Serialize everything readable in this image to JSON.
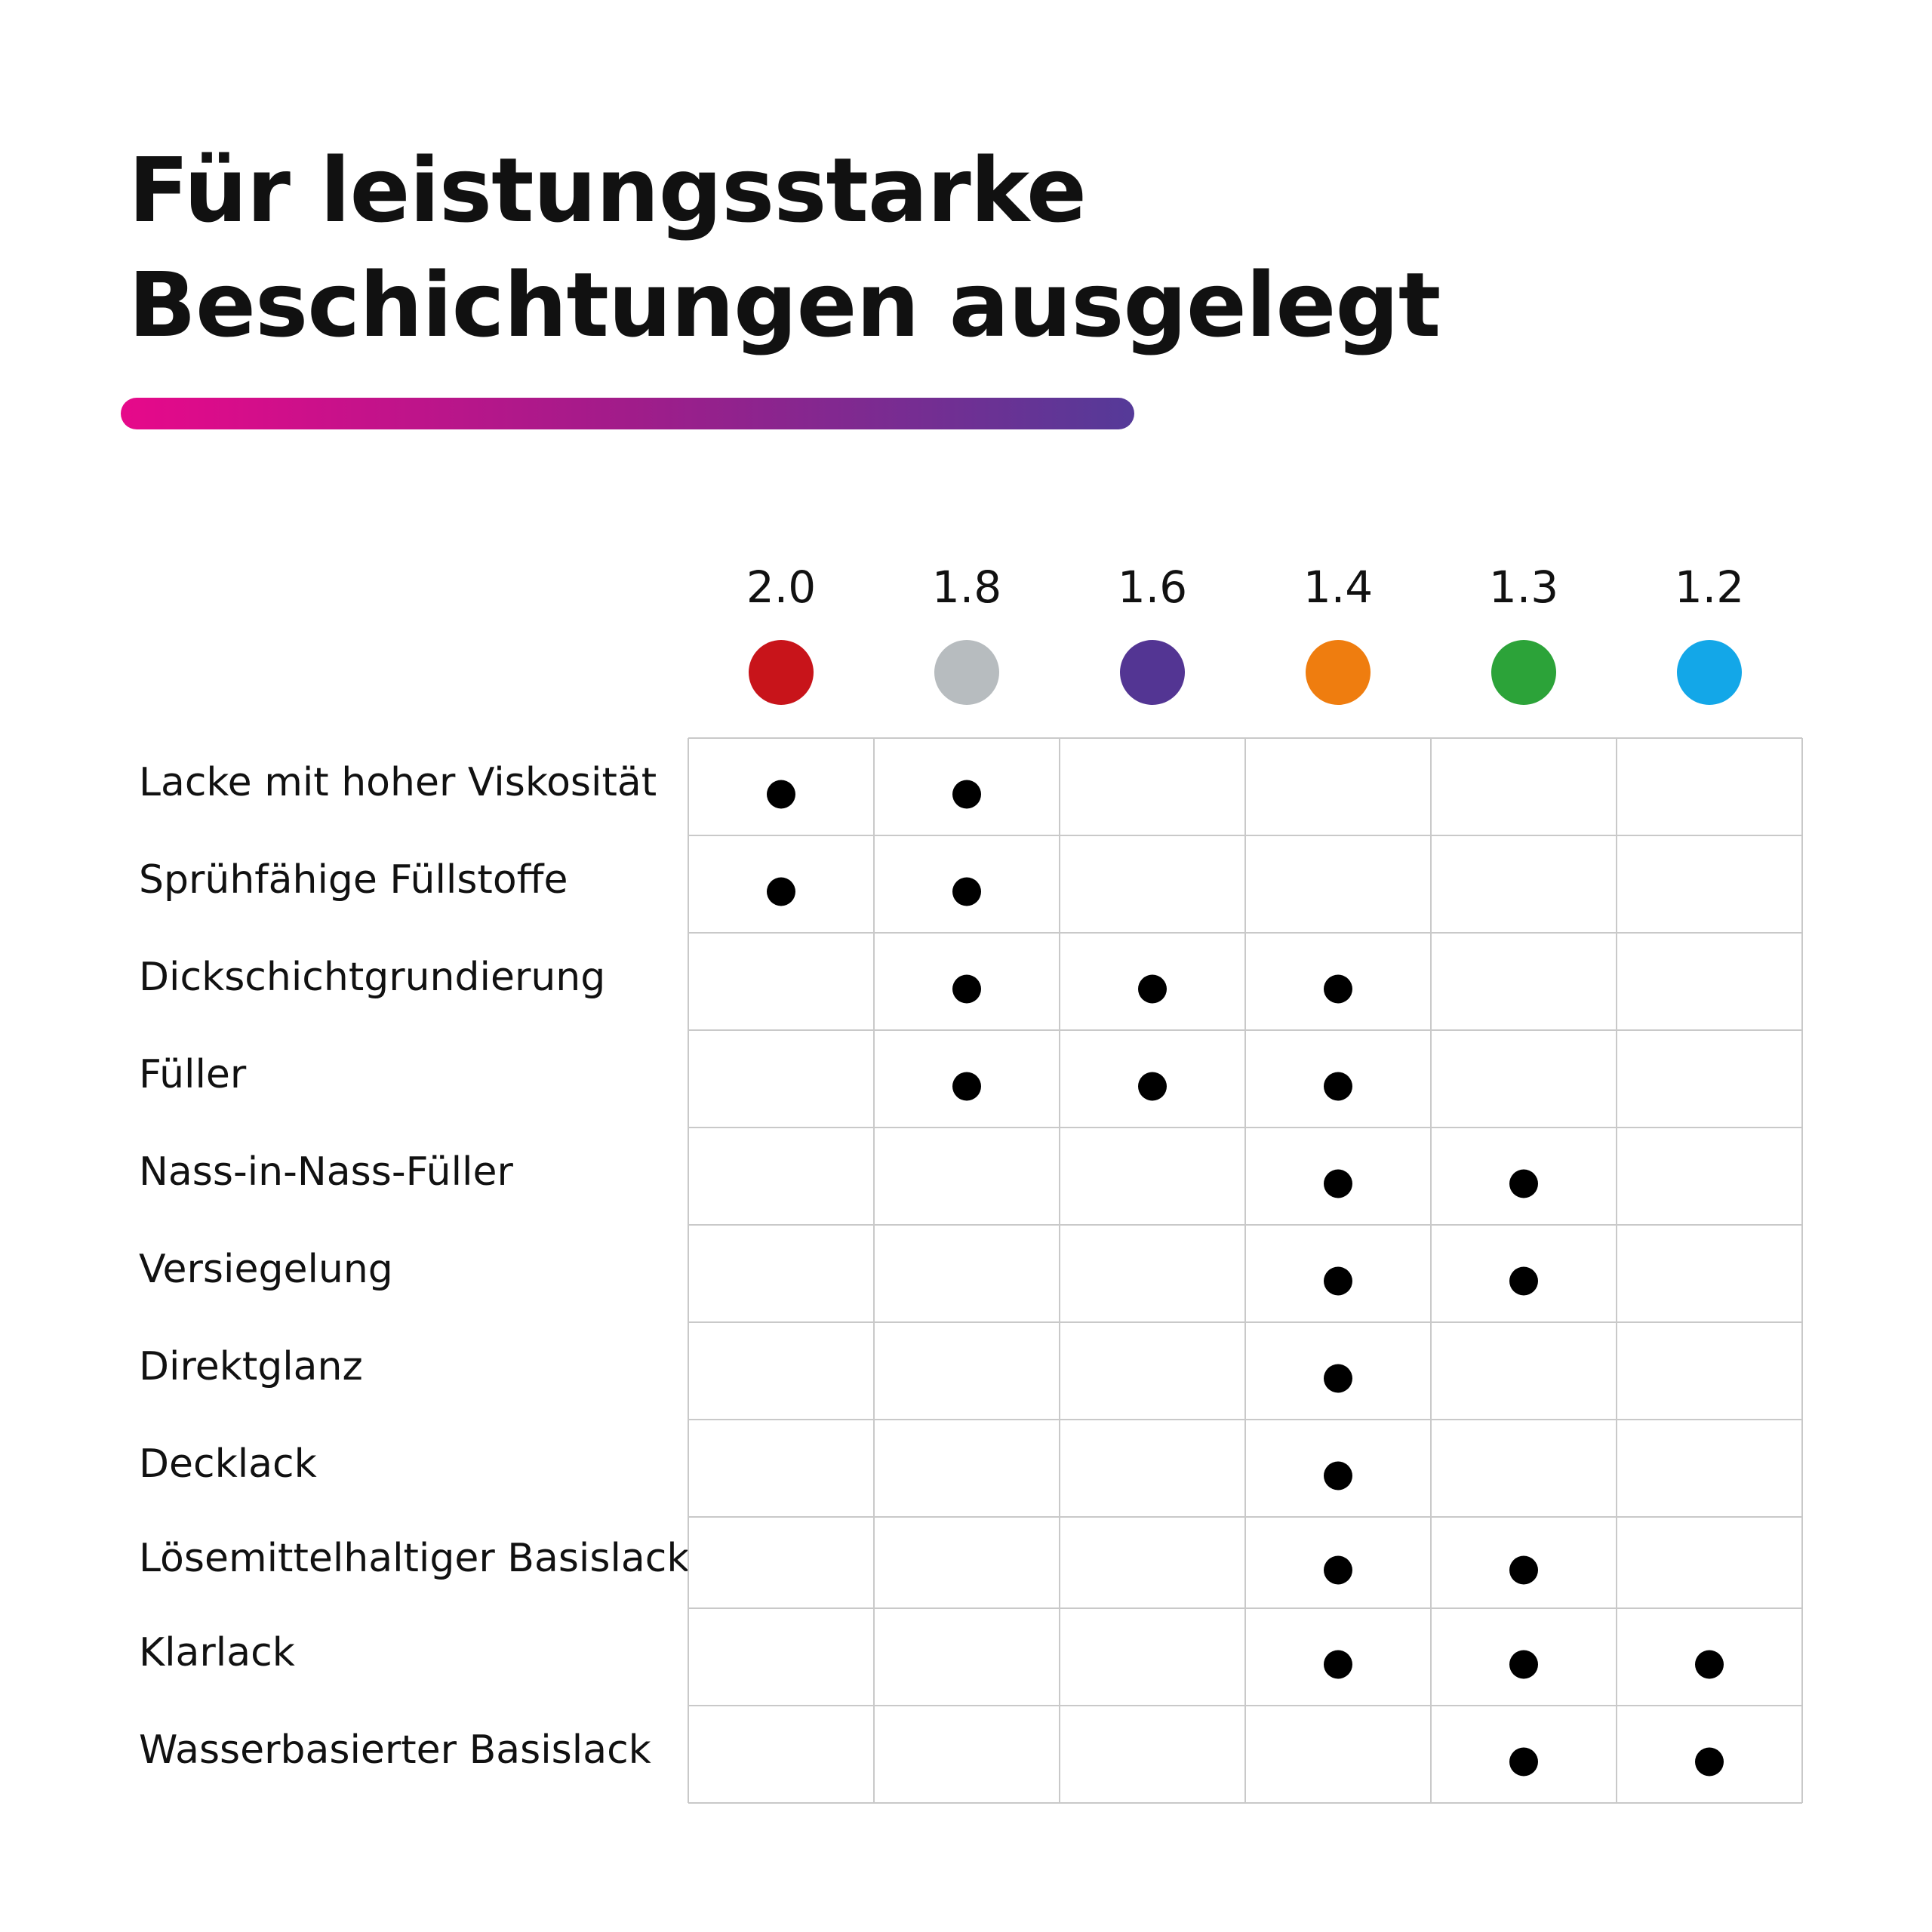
{
  "title": {
    "line1": "Für leistungsstarke",
    "line2": "Beschichtungen ausgelegt"
  },
  "accent_gradient": [
    "#e6098a",
    "#a11c8a",
    "#553a98"
  ],
  "columns": [
    {
      "label": "2.0",
      "color": "#c8141a"
    },
    {
      "label": "1.8",
      "color": "#b7bcbf"
    },
    {
      "label": "1.6",
      "color": "#533593"
    },
    {
      "label": "1.4",
      "color": "#ef7d0f"
    },
    {
      "label": "1.3",
      "color": "#2ca339"
    },
    {
      "label": "1.2",
      "color": "#13a7e8"
    }
  ],
  "rows": [
    {
      "label": "Lacke mit hoher Viskosität",
      "marks": [
        true,
        true,
        false,
        false,
        false,
        false
      ]
    },
    {
      "label": "Sprühfähige Füllstoffe",
      "marks": [
        true,
        true,
        false,
        false,
        false,
        false
      ]
    },
    {
      "label": "Dickschichtgrundierung",
      "marks": [
        false,
        true,
        true,
        true,
        false,
        false
      ]
    },
    {
      "label": "Füller",
      "marks": [
        false,
        true,
        true,
        true,
        false,
        false
      ]
    },
    {
      "label": "Nass-in-Nass-Füller",
      "marks": [
        false,
        false,
        false,
        true,
        true,
        false
      ]
    },
    {
      "label": "Versiegelung",
      "marks": [
        false,
        false,
        false,
        true,
        true,
        false
      ]
    },
    {
      "label": "Direktglanz",
      "marks": [
        false,
        false,
        false,
        true,
        false,
        false
      ]
    },
    {
      "label": "Decklack",
      "marks": [
        false,
        false,
        false,
        true,
        false,
        false
      ]
    },
    {
      "label": "Lösemittelhaltiger Basislack",
      "marks": [
        false,
        false,
        false,
        true,
        true,
        false
      ]
    },
    {
      "label": "Klarlack",
      "marks": [
        false,
        false,
        false,
        true,
        true,
        true
      ]
    },
    {
      "label": "Wasserbasierter Basislack",
      "marks": [
        false,
        false,
        false,
        false,
        true,
        true
      ]
    }
  ]
}
